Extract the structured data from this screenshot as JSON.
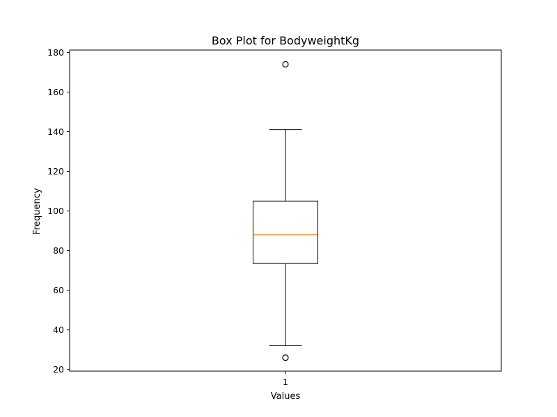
{
  "chart_data": {
    "type": "boxplot",
    "title": "Box Plot for BodyweightKg",
    "xlabel": "Values",
    "ylabel": "Frequency",
    "categories": [
      "1"
    ],
    "ylim": [
      19.2,
      181.2
    ],
    "yticks": [
      "20",
      "40",
      "60",
      "80",
      "100",
      "120",
      "140",
      "160",
      "180"
    ],
    "boxes": [
      {
        "category": "1",
        "whisker_low": 32,
        "q1": 73.5,
        "median": 88,
        "q3": 105,
        "whisker_high": 141,
        "outliers": [
          26,
          174
        ]
      }
    ],
    "grid": false,
    "colors": {
      "box": "#000000",
      "median": "#ff7f0e",
      "outlier_edge": "#000000"
    }
  }
}
